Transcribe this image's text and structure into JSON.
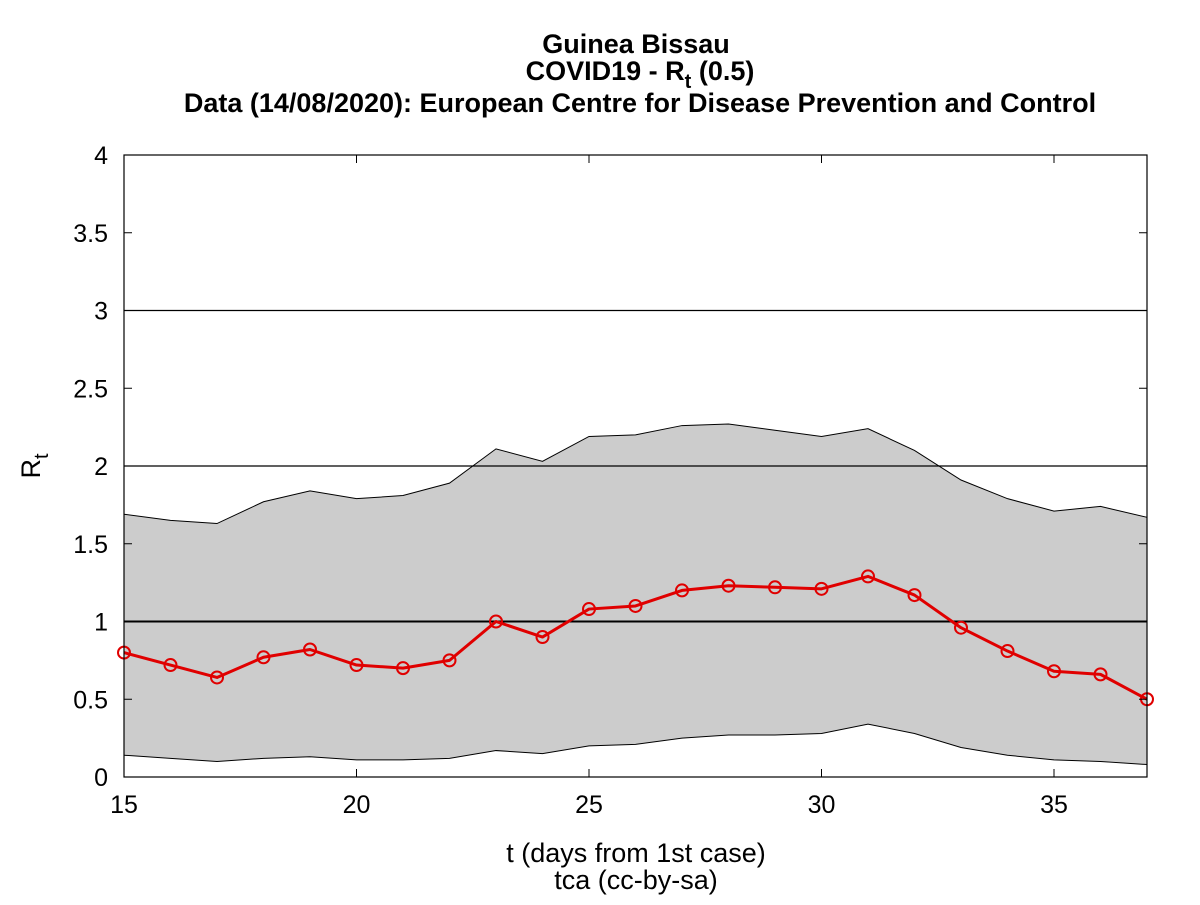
{
  "chart_data": {
    "type": "line",
    "title": {
      "line1": "Guinea Bissau",
      "line2_prefix": "COVID19 - R",
      "line2_sub": "t",
      "line2_suffix": " (0.5)",
      "line3": "Data (14/08/2020): European Centre for Disease Prevention and Control"
    },
    "xlabel": "t (days from 1st case)",
    "credit": "tca (cc-by-sa)",
    "ylabel": {
      "main": "R",
      "sub": "t"
    },
    "xlim": [
      15,
      37
    ],
    "ylim": [
      0,
      4
    ],
    "xticks": [
      "15",
      "20",
      "25",
      "30",
      "35"
    ],
    "yticks": [
      "0",
      "0.5",
      "1",
      "1.5",
      "2",
      "2.5",
      "3",
      "3.5",
      "4"
    ],
    "reference_lines": [
      1,
      2,
      3
    ],
    "grid": false,
    "colors": {
      "line": "#e00000",
      "band": "#cccccc",
      "band_edge": "#000000",
      "axis": "#000000"
    },
    "x": [
      15,
      16,
      17,
      18,
      19,
      20,
      21,
      22,
      23,
      24,
      25,
      26,
      27,
      28,
      29,
      30,
      31,
      32,
      33,
      34,
      35,
      36,
      37
    ],
    "series": [
      {
        "values": [
          0.8,
          0.72,
          0.64,
          0.77,
          0.82,
          0.72,
          0.7,
          0.75,
          1.0,
          0.9,
          1.08,
          1.1,
          1.2,
          1.23,
          1.22,
          1.21,
          1.29,
          1.17,
          0.96,
          0.81,
          0.68,
          0.66,
          0.5
        ]
      }
    ],
    "band": {
      "upper": [
        1.69,
        1.65,
        1.63,
        1.77,
        1.84,
        1.79,
        1.81,
        1.89,
        2.11,
        2.03,
        2.19,
        2.2,
        2.26,
        2.27,
        2.23,
        2.19,
        2.24,
        2.1,
        1.91,
        1.79,
        1.71,
        1.74,
        1.67
      ],
      "lower": [
        0.14,
        0.12,
        0.1,
        0.12,
        0.13,
        0.11,
        0.11,
        0.12,
        0.17,
        0.15,
        0.2,
        0.21,
        0.25,
        0.27,
        0.27,
        0.28,
        0.34,
        0.28,
        0.19,
        0.14,
        0.11,
        0.1,
        0.08
      ]
    }
  }
}
